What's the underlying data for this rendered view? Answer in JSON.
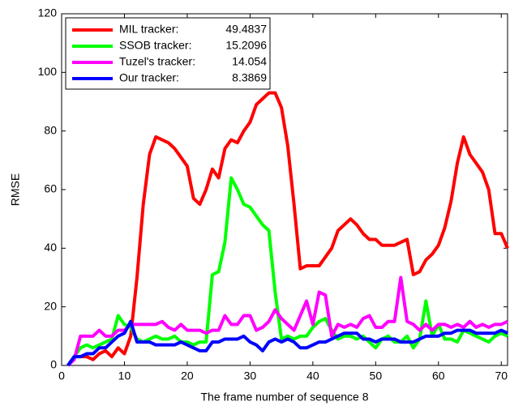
{
  "chart_data": {
    "type": "line",
    "x_label": "The frame number of sequence 8",
    "y_label": "RMSE",
    "x": [
      1,
      2,
      3,
      4,
      5,
      6,
      7,
      8,
      9,
      10,
      11,
      12,
      13,
      14,
      15,
      16,
      17,
      18,
      19,
      20,
      21,
      22,
      23,
      24,
      25,
      26,
      27,
      28,
      29,
      30,
      31,
      32,
      33,
      34,
      35,
      36,
      37,
      38,
      39,
      40,
      41,
      42,
      43,
      44,
      45,
      46,
      47,
      48,
      49,
      50,
      51,
      52,
      53,
      54,
      55,
      56,
      57,
      58,
      59,
      60,
      61,
      62,
      63,
      64,
      65,
      66,
      67,
      68,
      69,
      70,
      71
    ],
    "series": [
      {
        "name": "MIL tracker:",
        "mean_rmse": 49.4837,
        "color": "#ff0000",
        "values": [
          0,
          3,
          3,
          3,
          2,
          4,
          5,
          3,
          6,
          4,
          10,
          30,
          55,
          72,
          78,
          77,
          76,
          74,
          71,
          68,
          57,
          55,
          60,
          67,
          64,
          74,
          77,
          76,
          80,
          83,
          89,
          91,
          93,
          93,
          88,
          75,
          55,
          33,
          34,
          34,
          34,
          37,
          40,
          46,
          48,
          50,
          48,
          45,
          43,
          43,
          41,
          41,
          41,
          42,
          43,
          31,
          32,
          36,
          38,
          41,
          47,
          56,
          69,
          78,
          72,
          69,
          66,
          60,
          45,
          45,
          40
        ]
      },
      {
        "name": "SSOB tracker:",
        "mean_rmse": 15.2096,
        "color": "#00ff00",
        "values": [
          0,
          3,
          6,
          7,
          6,
          7,
          8,
          9,
          17,
          14,
          13,
          9,
          8,
          9,
          10,
          9,
          9,
          10,
          8,
          8,
          7,
          8,
          8,
          31,
          32,
          42,
          64,
          60,
          55,
          54,
          51,
          48,
          46,
          25,
          9,
          10,
          9,
          10,
          10,
          13,
          15,
          16,
          12,
          9,
          10,
          10,
          9,
          10,
          8,
          6,
          9,
          10,
          8,
          8,
          10,
          6,
          9,
          22,
          10,
          14,
          9,
          9,
          8,
          12,
          11,
          10,
          9,
          8,
          10,
          11,
          10
        ]
      },
      {
        "name": "Tuzel's tracker:",
        "mean_rmse": 14.054,
        "color": "#ff00ff",
        "values": [
          0,
          2,
          10,
          10,
          10,
          12,
          10,
          10,
          12,
          12,
          14,
          14,
          14,
          14,
          14,
          15,
          13,
          12,
          14,
          12,
          12,
          12,
          11,
          12,
          12,
          17,
          14,
          14,
          17,
          17,
          12,
          13,
          15,
          19,
          16,
          14,
          12,
          17,
          22,
          14,
          25,
          24,
          10,
          14,
          13,
          14,
          13,
          16,
          17,
          13,
          13,
          15,
          15,
          30,
          15,
          14,
          12,
          14,
          12,
          14,
          14,
          13,
          14,
          13,
          15,
          13,
          14,
          13,
          14,
          14,
          15
        ]
      },
      {
        "name": "Our tracker:",
        "mean_rmse": 8.3869,
        "color": "#0000ff",
        "values": [
          0,
          3,
          3,
          4,
          4,
          6,
          6,
          8,
          10,
          11,
          15,
          8,
          8,
          8,
          7,
          7,
          7,
          7,
          8,
          7,
          6,
          5,
          5,
          8,
          8,
          9,
          9,
          9,
          10,
          8,
          7,
          5,
          8,
          9,
          8,
          9,
          8,
          6,
          6,
          7,
          8,
          8,
          9,
          10,
          11,
          11,
          11,
          9,
          9,
          8,
          9,
          9,
          9,
          8,
          8,
          8,
          9,
          10,
          10,
          10,
          11,
          11,
          12,
          12,
          12,
          11,
          11,
          11,
          11,
          12,
          11
        ]
      }
    ],
    "xlim": [
      0,
      71
    ],
    "xticks": [
      0,
      10,
      20,
      30,
      40,
      50,
      60,
      70
    ],
    "ylim": [
      0,
      120
    ],
    "yticks": [
      0,
      20,
      40,
      60,
      80,
      100,
      120
    ],
    "grid": false,
    "legend": "upper left"
  }
}
